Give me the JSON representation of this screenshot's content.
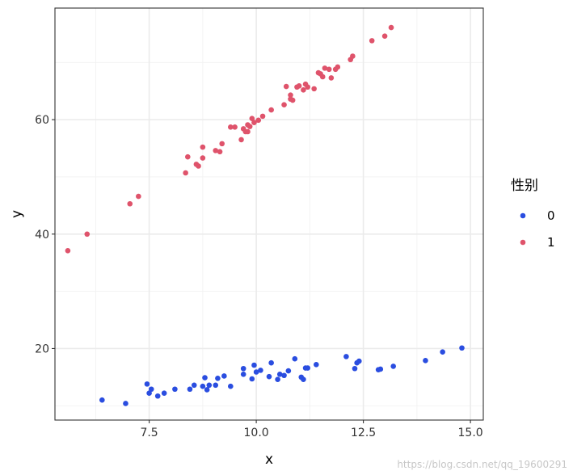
{
  "chart_data": {
    "type": "scatter",
    "xlabel": "x",
    "ylabel": "y",
    "xlim": [
      5.3,
      15.3
    ],
    "ylim": [
      7.5,
      79.5
    ],
    "x_ticks": [
      7.5,
      10.0,
      12.5,
      15.0
    ],
    "x_tick_labels": [
      "7.5",
      "10.0",
      "12.5",
      "15.0"
    ],
    "y_ticks": [
      20,
      40,
      60
    ],
    "y_tick_labels": [
      "20",
      "40",
      "60"
    ],
    "grid": true,
    "legend": {
      "title": "性别",
      "position": "right",
      "entries": [
        {
          "label": "0",
          "color": "#2a4de0"
        },
        {
          "label": "1",
          "color": "#df536b"
        }
      ]
    },
    "series": [
      {
        "name": "0",
        "color": "#2a4de0",
        "points": [
          [
            6.4,
            11.0
          ],
          [
            6.95,
            10.4
          ],
          [
            7.45,
            13.8
          ],
          [
            7.5,
            12.2
          ],
          [
            7.55,
            12.9
          ],
          [
            7.7,
            11.7
          ],
          [
            7.85,
            12.2
          ],
          [
            8.1,
            12.9
          ],
          [
            8.45,
            12.9
          ],
          [
            8.55,
            13.6
          ],
          [
            8.75,
            13.4
          ],
          [
            8.8,
            14.9
          ],
          [
            8.85,
            12.8
          ],
          [
            8.9,
            13.6
          ],
          [
            9.05,
            13.6
          ],
          [
            9.1,
            14.8
          ],
          [
            9.25,
            15.2
          ],
          [
            9.4,
            13.4
          ],
          [
            9.7,
            15.5
          ],
          [
            9.7,
            16.5
          ],
          [
            9.9,
            14.7
          ],
          [
            9.95,
            17.1
          ],
          [
            10.0,
            15.9
          ],
          [
            10.1,
            16.2
          ],
          [
            10.3,
            15.1
          ],
          [
            10.35,
            17.5
          ],
          [
            10.5,
            14.6
          ],
          [
            10.55,
            15.5
          ],
          [
            10.65,
            15.3
          ],
          [
            10.75,
            16.1
          ],
          [
            10.9,
            18.2
          ],
          [
            11.05,
            15.0
          ],
          [
            11.1,
            14.6
          ],
          [
            11.15,
            16.6
          ],
          [
            11.2,
            16.6
          ],
          [
            11.4,
            17.2
          ],
          [
            12.1,
            18.6
          ],
          [
            12.3,
            16.5
          ],
          [
            12.35,
            17.5
          ],
          [
            12.4,
            17.8
          ],
          [
            12.85,
            16.3
          ],
          [
            12.9,
            16.4
          ],
          [
            13.2,
            16.9
          ],
          [
            13.95,
            17.9
          ],
          [
            14.35,
            19.4
          ],
          [
            14.8,
            20.1
          ]
        ]
      },
      {
        "name": "1",
        "color": "#df536b",
        "points": [
          [
            5.6,
            37.1
          ],
          [
            6.05,
            40.0
          ],
          [
            7.05,
            45.3
          ],
          [
            7.25,
            46.6
          ],
          [
            8.35,
            50.7
          ],
          [
            8.4,
            53.5
          ],
          [
            8.6,
            52.2
          ],
          [
            8.65,
            51.9
          ],
          [
            8.75,
            55.2
          ],
          [
            8.75,
            53.3
          ],
          [
            9.05,
            54.6
          ],
          [
            9.15,
            54.4
          ],
          [
            9.2,
            55.8
          ],
          [
            9.4,
            58.7
          ],
          [
            9.5,
            58.7
          ],
          [
            9.65,
            56.5
          ],
          [
            9.7,
            58.4
          ],
          [
            9.75,
            57.9
          ],
          [
            9.8,
            59.1
          ],
          [
            9.8,
            57.9
          ],
          [
            9.85,
            58.8
          ],
          [
            9.9,
            60.2
          ],
          [
            9.95,
            59.5
          ],
          [
            10.05,
            59.9
          ],
          [
            10.15,
            60.6
          ],
          [
            10.35,
            61.7
          ],
          [
            10.65,
            62.6
          ],
          [
            10.7,
            65.8
          ],
          [
            10.8,
            63.6
          ],
          [
            10.8,
            64.3
          ],
          [
            10.85,
            63.4
          ],
          [
            10.95,
            65.7
          ],
          [
            11.0,
            65.9
          ],
          [
            11.1,
            65.2
          ],
          [
            11.15,
            66.2
          ],
          [
            11.2,
            65.7
          ],
          [
            11.35,
            65.4
          ],
          [
            11.45,
            68.2
          ],
          [
            11.5,
            68.0
          ],
          [
            11.55,
            67.5
          ],
          [
            11.6,
            69.0
          ],
          [
            11.7,
            68.8
          ],
          [
            11.75,
            67.3
          ],
          [
            11.85,
            68.8
          ],
          [
            11.9,
            69.2
          ],
          [
            12.2,
            70.5
          ],
          [
            12.25,
            71.1
          ],
          [
            12.7,
            73.8
          ],
          [
            13.0,
            74.6
          ],
          [
            13.15,
            76.1
          ]
        ]
      }
    ]
  },
  "watermark": "https://blog.csdn.net/qq_19600291"
}
